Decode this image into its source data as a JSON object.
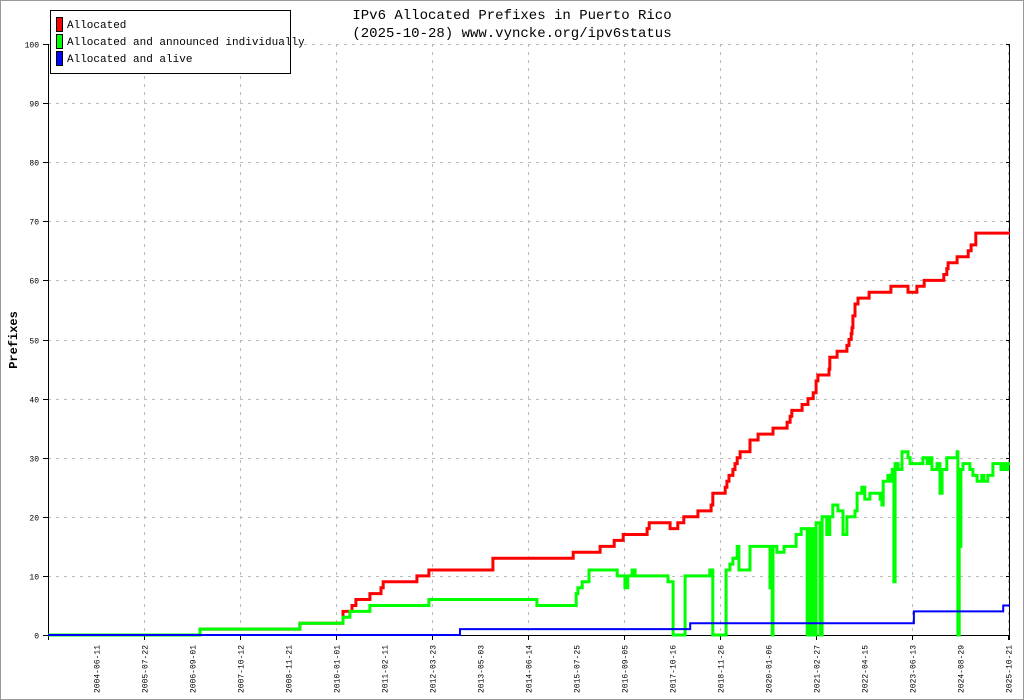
{
  "chart_data": {
    "type": "line",
    "title": "IPv6 Allocated Prefixes in Puerto Rico",
    "subtitle": "(2025-10-28) www.vyncke.org/ipv6status",
    "xlabel": "",
    "ylabel": "Prefixes",
    "xlim": [
      2003.32,
      2025.85
    ],
    "ylim": [
      0,
      100
    ],
    "yticks": [
      0,
      10,
      20,
      30,
      40,
      50,
      60,
      70,
      80,
      90,
      100
    ],
    "grid": true,
    "legend_position": "top-left",
    "xticks": [
      {
        "label": "2004-06-11",
        "x": 2004.44
      },
      {
        "label": "2005-07-22",
        "x": 2005.56
      },
      {
        "label": "2006-09-01",
        "x": 2006.69
      },
      {
        "label": "2007-10-12",
        "x": 2007.81
      },
      {
        "label": "2008-11-21",
        "x": 2008.94
      },
      {
        "label": "2010-01-01",
        "x": 2010.06
      },
      {
        "label": "2011-02-11",
        "x": 2011.18
      },
      {
        "label": "2012-03-23",
        "x": 2012.31
      },
      {
        "label": "2013-05-03",
        "x": 2013.43
      },
      {
        "label": "2014-06-14",
        "x": 2014.56
      },
      {
        "label": "2015-07-25",
        "x": 2015.68
      },
      {
        "label": "2016-09-05",
        "x": 2016.8
      },
      {
        "label": "2017-10-16",
        "x": 2017.93
      },
      {
        "label": "2018-11-26",
        "x": 2019.05
      },
      {
        "label": "2020-01-06",
        "x": 2020.18
      },
      {
        "label": "2021-02-27",
        "x": 2021.3
      },
      {
        "label": "2022-04-15",
        "x": 2022.42
      },
      {
        "label": "2023-06-13",
        "x": 2023.55
      },
      {
        "label": "2024-08-29",
        "x": 2024.67
      },
      {
        "label": "2025-10-21",
        "x": 2025.8
      }
    ],
    "series": [
      {
        "name": "Allocated",
        "color": "#ff0000",
        "points": [
          [
            2003.32,
            0
          ],
          [
            2006.88,
            1
          ],
          [
            2009.22,
            2
          ],
          [
            2010.23,
            4
          ],
          [
            2010.44,
            5
          ],
          [
            2010.53,
            6
          ],
          [
            2010.86,
            7
          ],
          [
            2011.12,
            8
          ],
          [
            2011.17,
            9
          ],
          [
            2011.96,
            10
          ],
          [
            2012.24,
            11
          ],
          [
            2013.74,
            13
          ],
          [
            2015.62,
            14
          ],
          [
            2016.25,
            15
          ],
          [
            2016.58,
            16
          ],
          [
            2016.79,
            17
          ],
          [
            2017.35,
            18
          ],
          [
            2017.4,
            19
          ],
          [
            2017.89,
            18
          ],
          [
            2018.07,
            19
          ],
          [
            2018.21,
            20
          ],
          [
            2018.54,
            21
          ],
          [
            2018.85,
            22
          ],
          [
            2018.89,
            24
          ],
          [
            2019.18,
            25
          ],
          [
            2019.22,
            26
          ],
          [
            2019.27,
            27
          ],
          [
            2019.36,
            28
          ],
          [
            2019.41,
            29
          ],
          [
            2019.46,
            30
          ],
          [
            2019.53,
            31
          ],
          [
            2019.76,
            33
          ],
          [
            2019.95,
            34
          ],
          [
            2020.3,
            35
          ],
          [
            2020.63,
            36
          ],
          [
            2020.7,
            37
          ],
          [
            2020.74,
            38
          ],
          [
            2020.98,
            39
          ],
          [
            2021.12,
            40
          ],
          [
            2021.24,
            41
          ],
          [
            2021.31,
            43
          ],
          [
            2021.35,
            44
          ],
          [
            2021.61,
            45
          ],
          [
            2021.63,
            47
          ],
          [
            2021.8,
            48
          ],
          [
            2022.03,
            49
          ],
          [
            2022.08,
            50
          ],
          [
            2022.13,
            51
          ],
          [
            2022.15,
            52
          ],
          [
            2022.17,
            54
          ],
          [
            2022.22,
            56
          ],
          [
            2022.29,
            57
          ],
          [
            2022.55,
            58
          ],
          [
            2023.06,
            59
          ],
          [
            2023.46,
            58
          ],
          [
            2023.67,
            59
          ],
          [
            2023.84,
            60
          ],
          [
            2024.3,
            61
          ],
          [
            2024.37,
            62
          ],
          [
            2024.4,
            63
          ],
          [
            2024.61,
            64
          ],
          [
            2024.87,
            65
          ],
          [
            2024.94,
            66
          ],
          [
            2025.05,
            68
          ],
          [
            2025.85,
            68
          ]
        ]
      },
      {
        "name": "Allocated and announced individually",
        "color": "#00ff00",
        "points": [
          [
            2003.32,
            0
          ],
          [
            2006.88,
            1
          ],
          [
            2009.22,
            2
          ],
          [
            2010.23,
            3
          ],
          [
            2010.39,
            4
          ],
          [
            2010.86,
            5
          ],
          [
            2012.24,
            6
          ],
          [
            2014.77,
            5
          ],
          [
            2015.69,
            7
          ],
          [
            2015.73,
            8
          ],
          [
            2015.83,
            9
          ],
          [
            2015.99,
            11
          ],
          [
            2016.65,
            10
          ],
          [
            2016.83,
            8
          ],
          [
            2016.9,
            10
          ],
          [
            2017.0,
            11
          ],
          [
            2017.07,
            10
          ],
          [
            2017.84,
            9
          ],
          [
            2017.96,
            0
          ],
          [
            2018.24,
            10
          ],
          [
            2018.82,
            11
          ],
          [
            2018.89,
            0
          ],
          [
            2019.2,
            11
          ],
          [
            2019.29,
            12
          ],
          [
            2019.36,
            13
          ],
          [
            2019.46,
            15
          ],
          [
            2019.5,
            11
          ],
          [
            2019.76,
            15
          ],
          [
            2020.23,
            8
          ],
          [
            2020.28,
            0
          ],
          [
            2020.3,
            15
          ],
          [
            2020.39,
            14
          ],
          [
            2020.56,
            15
          ],
          [
            2020.84,
            17
          ],
          [
            2020.96,
            18
          ],
          [
            2021.1,
            0
          ],
          [
            2021.14,
            18
          ],
          [
            2021.21,
            0
          ],
          [
            2021.24,
            18
          ],
          [
            2021.28,
            0
          ],
          [
            2021.31,
            19
          ],
          [
            2021.4,
            0
          ],
          [
            2021.45,
            20
          ],
          [
            2021.56,
            17
          ],
          [
            2021.63,
            20
          ],
          [
            2021.7,
            22
          ],
          [
            2021.82,
            21
          ],
          [
            2021.94,
            17
          ],
          [
            2022.03,
            20
          ],
          [
            2022.22,
            21
          ],
          [
            2022.27,
            24
          ],
          [
            2022.38,
            25
          ],
          [
            2022.45,
            23
          ],
          [
            2022.57,
            24
          ],
          [
            2022.81,
            23
          ],
          [
            2022.85,
            22
          ],
          [
            2022.88,
            26
          ],
          [
            2022.99,
            27
          ],
          [
            2023.04,
            26
          ],
          [
            2023.09,
            28
          ],
          [
            2023.13,
            9
          ],
          [
            2023.16,
            29
          ],
          [
            2023.23,
            28
          ],
          [
            2023.32,
            31
          ],
          [
            2023.46,
            30
          ],
          [
            2023.51,
            29
          ],
          [
            2023.81,
            30
          ],
          [
            2023.91,
            29
          ],
          [
            2023.98,
            30
          ],
          [
            2024.02,
            28
          ],
          [
            2024.14,
            29
          ],
          [
            2024.21,
            24
          ],
          [
            2024.26,
            28
          ],
          [
            2024.37,
            30
          ],
          [
            2024.61,
            31
          ],
          [
            2024.63,
            0
          ],
          [
            2024.66,
            15
          ],
          [
            2024.7,
            28
          ],
          [
            2024.75,
            29
          ],
          [
            2024.91,
            28
          ],
          [
            2024.98,
            27
          ],
          [
            2025.08,
            26
          ],
          [
            2025.19,
            27
          ],
          [
            2025.24,
            26
          ],
          [
            2025.33,
            27
          ],
          [
            2025.45,
            29
          ],
          [
            2025.64,
            28
          ],
          [
            2025.69,
            29
          ],
          [
            2025.76,
            28
          ],
          [
            2025.8,
            29
          ],
          [
            2025.85,
            29
          ]
        ]
      },
      {
        "name": "Allocated and alive",
        "color": "#0000ff",
        "points": [
          [
            2003.32,
            0
          ],
          [
            2012.97,
            1
          ],
          [
            2018.36,
            2
          ],
          [
            2023.6,
            4
          ],
          [
            2025.69,
            5
          ],
          [
            2025.85,
            5
          ]
        ]
      }
    ]
  }
}
